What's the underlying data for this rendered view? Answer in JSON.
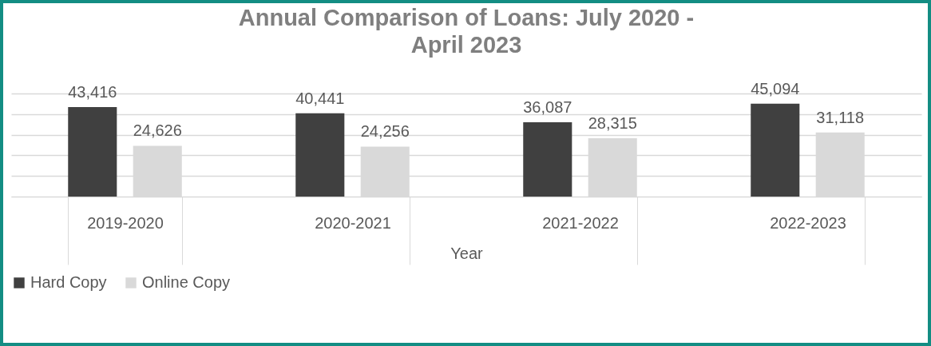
{
  "chart_data": {
    "type": "bar",
    "title": "Annual Comparison of Loans: July 2020 - April 2023",
    "xlabel": "Year",
    "categories": [
      "2019-2020",
      "2020-2021",
      "2021-2022",
      "2022-2023"
    ],
    "series": [
      {
        "name": "Hard Copy",
        "color": "#404040",
        "values": [
          43416,
          40441,
          36087,
          45094
        ],
        "value_labels": [
          "43,416",
          "40,441",
          "36,087",
          "45,094"
        ]
      },
      {
        "name": "Online Copy",
        "color": "#d9d9d9",
        "values": [
          24626,
          24256,
          28315,
          31118
        ],
        "value_labels": [
          "24,626",
          "24,256",
          "28,315",
          "31,118"
        ]
      }
    ],
    "grid": "y",
    "tick_labels": "x",
    "legend": "bottom"
  }
}
